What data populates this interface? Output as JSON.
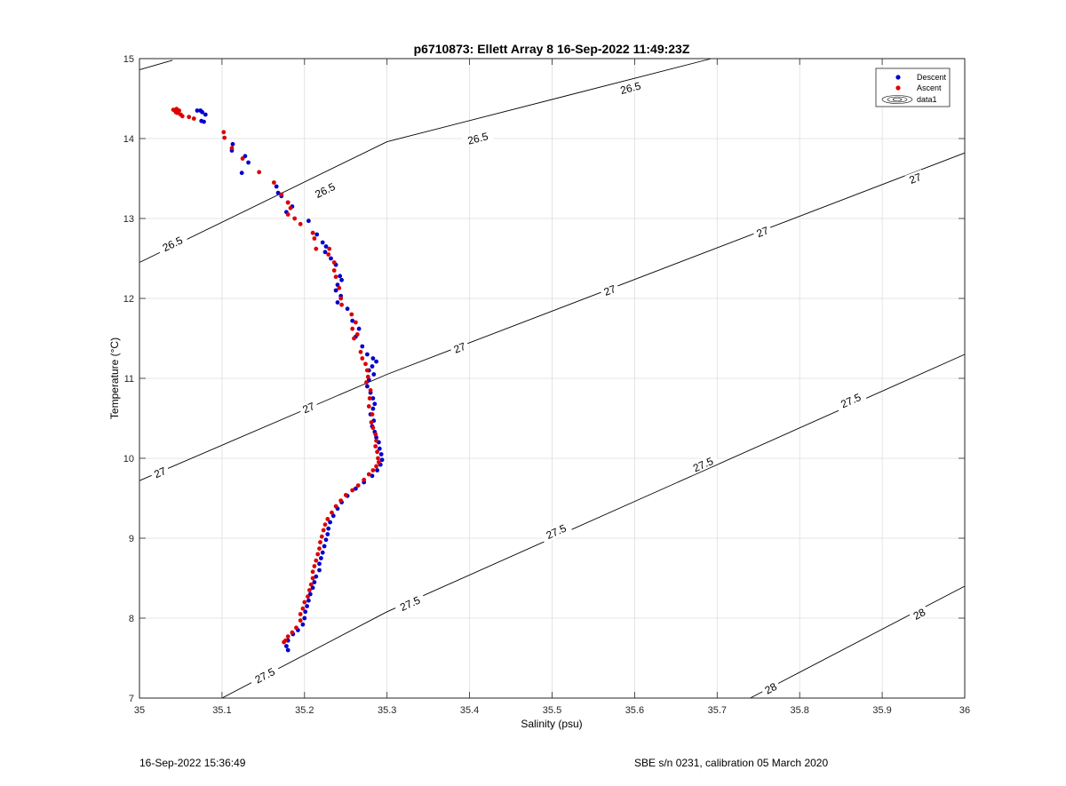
{
  "footer": {
    "left": "16-Sep-2022 15:36:49",
    "right": "SBE s/n 0231, calibration 05 March 2020"
  },
  "chart_data": {
    "type": "scatter",
    "title": "p6710873: Ellett Array 8 16-Sep-2022 11:49:23Z",
    "xlabel": "Salinity (psu)",
    "ylabel": "Temperature (°C)",
    "xlim": [
      35,
      36
    ],
    "ylim": [
      7,
      15
    ],
    "xticks": [
      "35",
      "35.1",
      "35.2",
      "35.3",
      "35.4",
      "35.5",
      "35.6",
      "35.7",
      "35.8",
      "35.9",
      "36"
    ],
    "yticks": [
      "7",
      "8",
      "9",
      "10",
      "11",
      "12",
      "13",
      "14",
      "15"
    ],
    "grid": true,
    "legend_position": "top-right",
    "legend": [
      "Descent",
      "Ascent",
      "data1"
    ],
    "series": [
      {
        "name": "Descent",
        "color": "#0000cc",
        "points": [
          [
            35.076,
            14.33
          ],
          [
            35.074,
            14.35
          ],
          [
            35.07,
            14.35
          ],
          [
            35.08,
            14.3
          ],
          [
            35.075,
            14.22
          ],
          [
            35.078,
            14.21
          ],
          [
            35.113,
            13.93
          ],
          [
            35.112,
            13.85
          ],
          [
            35.128,
            13.78
          ],
          [
            35.132,
            13.7
          ],
          [
            35.124,
            13.57
          ],
          [
            35.166,
            13.4
          ],
          [
            35.168,
            13.32
          ],
          [
            35.172,
            13.28
          ],
          [
            35.18,
            13.2
          ],
          [
            35.185,
            13.15
          ],
          [
            35.178,
            13.08
          ],
          [
            35.205,
            12.97
          ],
          [
            35.215,
            12.8
          ],
          [
            35.222,
            12.7
          ],
          [
            35.226,
            12.65
          ],
          [
            35.225,
            12.58
          ],
          [
            35.232,
            12.5
          ],
          [
            35.238,
            12.42
          ],
          [
            35.243,
            12.28
          ],
          [
            35.245,
            12.23
          ],
          [
            35.24,
            12.17
          ],
          [
            35.238,
            12.1
          ],
          [
            35.244,
            12.03
          ],
          [
            35.24,
            11.95
          ],
          [
            35.252,
            11.87
          ],
          [
            35.258,
            11.72
          ],
          [
            35.266,
            11.62
          ],
          [
            35.262,
            11.52
          ],
          [
            35.27,
            11.4
          ],
          [
            35.276,
            11.3
          ],
          [
            35.283,
            11.25
          ],
          [
            35.287,
            11.21
          ],
          [
            35.282,
            11.15
          ],
          [
            35.278,
            11.1
          ],
          [
            35.284,
            11.05
          ],
          [
            35.278,
            10.98
          ],
          [
            35.276,
            10.9
          ],
          [
            35.28,
            10.82
          ],
          [
            35.283,
            10.75
          ],
          [
            35.285,
            10.68
          ],
          [
            35.283,
            10.62
          ],
          [
            35.28,
            10.55
          ],
          [
            35.284,
            10.47
          ],
          [
            35.282,
            10.4
          ],
          [
            35.285,
            10.33
          ],
          [
            35.287,
            10.26
          ],
          [
            35.29,
            10.2
          ],
          [
            35.291,
            10.12
          ],
          [
            35.293,
            10.05
          ],
          [
            35.294,
            9.98
          ],
          [
            35.292,
            9.92
          ],
          [
            35.288,
            9.85
          ],
          [
            35.282,
            9.78
          ],
          [
            35.272,
            9.7
          ],
          [
            35.262,
            9.62
          ],
          [
            35.252,
            9.53
          ],
          [
            35.245,
            9.45
          ],
          [
            35.24,
            9.37
          ],
          [
            35.235,
            9.28
          ],
          [
            35.231,
            9.2
          ],
          [
            35.229,
            9.12
          ],
          [
            35.228,
            9.05
          ],
          [
            35.226,
            8.98
          ],
          [
            35.224,
            8.9
          ],
          [
            35.222,
            8.82
          ],
          [
            35.22,
            8.75
          ],
          [
            35.218,
            8.68
          ],
          [
            35.218,
            8.6
          ],
          [
            35.214,
            8.52
          ],
          [
            35.212,
            8.45
          ],
          [
            35.21,
            8.38
          ],
          [
            35.207,
            8.3
          ],
          [
            35.205,
            8.22
          ],
          [
            35.203,
            8.15
          ],
          [
            35.201,
            8.08
          ],
          [
            35.2,
            8.0
          ],
          [
            35.198,
            7.92
          ],
          [
            35.192,
            7.85
          ],
          [
            35.186,
            7.8
          ],
          [
            35.18,
            7.72
          ],
          [
            35.178,
            7.65
          ],
          [
            35.18,
            7.6
          ]
        ]
      },
      {
        "name": "Ascent",
        "color": "#dd0000",
        "points": [
          [
            35.041,
            14.36
          ],
          [
            35.045,
            14.37
          ],
          [
            35.048,
            14.35
          ],
          [
            35.046,
            14.32
          ],
          [
            35.05,
            14.3
          ],
          [
            35.044,
            14.33
          ],
          [
            35.052,
            14.28
          ],
          [
            35.06,
            14.27
          ],
          [
            35.066,
            14.25
          ],
          [
            35.102,
            14.08
          ],
          [
            35.103,
            14.01
          ],
          [
            35.112,
            13.88
          ],
          [
            35.125,
            13.75
          ],
          [
            35.145,
            13.58
          ],
          [
            35.163,
            13.45
          ],
          [
            35.172,
            13.3
          ],
          [
            35.18,
            13.2
          ],
          [
            35.183,
            13.13
          ],
          [
            35.18,
            13.05
          ],
          [
            35.188,
            13.0
          ],
          [
            35.195,
            12.93
          ],
          [
            35.21,
            12.82
          ],
          [
            35.212,
            12.75
          ],
          [
            35.23,
            12.62
          ],
          [
            35.214,
            12.62
          ],
          [
            35.229,
            12.55
          ],
          [
            35.236,
            12.45
          ],
          [
            35.236,
            12.35
          ],
          [
            35.238,
            12.27
          ],
          [
            35.242,
            12.13
          ],
          [
            35.244,
            12.0
          ],
          [
            35.245,
            11.92
          ],
          [
            35.257,
            11.8
          ],
          [
            35.262,
            11.7
          ],
          [
            35.258,
            11.62
          ],
          [
            35.264,
            11.55
          ],
          [
            35.26,
            11.5
          ],
          [
            35.268,
            11.33
          ],
          [
            35.27,
            11.25
          ],
          [
            35.274,
            11.18
          ],
          [
            35.276,
            11.1
          ],
          [
            35.277,
            11.02
          ],
          [
            35.275,
            10.95
          ],
          [
            35.28,
            10.85
          ],
          [
            35.279,
            10.75
          ],
          [
            35.278,
            10.65
          ],
          [
            35.282,
            10.55
          ],
          [
            35.281,
            10.45
          ],
          [
            35.283,
            10.38
          ],
          [
            35.286,
            10.3
          ],
          [
            35.287,
            10.22
          ],
          [
            35.286,
            10.15
          ],
          [
            35.288,
            10.08
          ],
          [
            35.289,
            10.0
          ],
          [
            35.29,
            9.95
          ],
          [
            35.287,
            9.9
          ],
          [
            35.283,
            9.85
          ],
          [
            35.278,
            9.8
          ],
          [
            35.272,
            9.73
          ],
          [
            35.265,
            9.66
          ],
          [
            35.258,
            9.6
          ],
          [
            35.25,
            9.54
          ],
          [
            35.244,
            9.47
          ],
          [
            35.238,
            9.4
          ],
          [
            35.233,
            9.32
          ],
          [
            35.228,
            9.24
          ],
          [
            35.225,
            9.17
          ],
          [
            35.223,
            9.1
          ],
          [
            35.221,
            9.02
          ],
          [
            35.219,
            8.95
          ],
          [
            35.218,
            8.87
          ],
          [
            35.216,
            8.8
          ],
          [
            35.214,
            8.72
          ],
          [
            35.212,
            8.65
          ],
          [
            35.21,
            8.58
          ],
          [
            35.21,
            8.5
          ],
          [
            35.208,
            8.42
          ],
          [
            35.206,
            8.35
          ],
          [
            35.204,
            8.27
          ],
          [
            35.2,
            8.2
          ],
          [
            35.198,
            8.12
          ],
          [
            35.195,
            8.05
          ],
          [
            35.195,
            7.97
          ],
          [
            35.19,
            7.88
          ],
          [
            35.185,
            7.82
          ],
          [
            35.18,
            7.77
          ],
          [
            35.177,
            7.72
          ],
          [
            35.175,
            7.7
          ]
        ]
      }
    ],
    "contours": [
      {
        "level": 26.5,
        "line": [
          [
            35.0,
            12.45
          ],
          [
            35.3,
            13.96
          ],
          [
            35.693,
            15.0
          ]
        ],
        "labels": [
          {
            "text": "26.5",
            "at": [
              35.04,
              12.68
            ]
          },
          {
            "text": "26.5",
            "at": [
              35.225,
              13.35
            ]
          },
          {
            "text": "26.5",
            "at": [
              35.41,
              14.0
            ]
          },
          {
            "text": "26.5",
            "at": [
              35.595,
              14.63
            ]
          }
        ]
      },
      {
        "level": 26.5,
        "line": [
          [
            35.0,
            14.86
          ],
          [
            35.04,
            14.98
          ]
        ],
        "labels": []
      },
      {
        "level": 27,
        "line": [
          [
            35.0,
            9.72
          ],
          [
            35.3,
            11.05
          ],
          [
            36.0,
            13.82
          ]
        ],
        "labels": [
          {
            "text": "27",
            "at": [
              35.025,
              9.82
            ]
          },
          {
            "text": "27",
            "at": [
              35.205,
              10.63
            ]
          },
          {
            "text": "27",
            "at": [
              35.388,
              11.38
            ]
          },
          {
            "text": "27",
            "at": [
              35.57,
              12.1
            ]
          },
          {
            "text": "27",
            "at": [
              35.755,
              12.83
            ]
          },
          {
            "text": "27",
            "at": [
              35.94,
              13.5
            ]
          }
        ]
      },
      {
        "level": 27.5,
        "line": [
          [
            35.1,
            7.0
          ],
          [
            35.3,
            8.08
          ],
          [
            36.0,
            11.3
          ]
        ],
        "labels": [
          {
            "text": "27.5",
            "at": [
              35.152,
              7.28
            ]
          },
          {
            "text": "27.5",
            "at": [
              35.328,
              8.18
            ]
          },
          {
            "text": "27.5",
            "at": [
              35.505,
              9.08
            ]
          },
          {
            "text": "27.5",
            "at": [
              35.683,
              9.92
            ]
          },
          {
            "text": "27.5",
            "at": [
              35.862,
              10.72
            ]
          }
        ]
      },
      {
        "level": 28,
        "line": [
          [
            35.74,
            7.0
          ],
          [
            36.0,
            8.4
          ]
        ],
        "labels": [
          {
            "text": "28",
            "at": [
              35.765,
              7.12
            ]
          },
          {
            "text": "28",
            "at": [
              35.945,
              8.05
            ]
          }
        ]
      }
    ]
  }
}
